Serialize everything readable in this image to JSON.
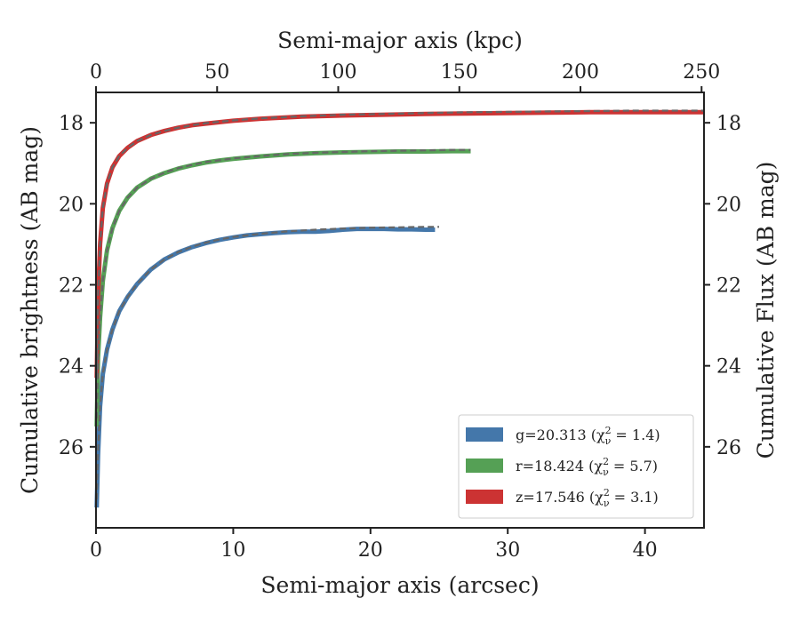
{
  "chart_data": {
    "type": "line",
    "xlabel": "Semi-major axis (arcsec)",
    "xlabel_top": "Semi-major axis (kpc)",
    "ylabel": "Cumulative brightness (AB mag)",
    "ylabel_right": "Cumulative Flux (AB mag)",
    "xlim": [
      0,
      44.3
    ],
    "xlim_top": [
      0,
      251
    ],
    "ylim": [
      28.0,
      17.25
    ],
    "y_inverted": true,
    "x_ticks": [
      0,
      10,
      20,
      30,
      40
    ],
    "x_tick_labels": [
      "0",
      "10",
      "20",
      "30",
      "40"
    ],
    "x_top_ticks": [
      0,
      50,
      100,
      150,
      200,
      250
    ],
    "x_top_tick_labels": [
      "0",
      "50",
      "100",
      "150",
      "200",
      "250"
    ],
    "y_ticks": [
      18,
      20,
      22,
      24,
      26
    ],
    "y_tick_labels": [
      "18",
      "20",
      "22",
      "24",
      "26"
    ],
    "grid": false,
    "legend_position": "lower-right",
    "legend": [
      {
        "band": "g",
        "text": "g=20.313 (χ",
        "sup": "2",
        "sub": "ν",
        "text_end": " = 1.4)",
        "color": "#4477aa"
      },
      {
        "band": "r",
        "text": "r=18.424 (χ",
        "sup": "2",
        "sub": "ν",
        "text_end": " = 5.7)",
        "color": "#55a055"
      },
      {
        "band": "z",
        "text": "z=17.546 (χ",
        "sup": "2",
        "sub": "ν",
        "text_end": " = 3.1)",
        "color": "#cc3333"
      }
    ],
    "model_line_color": "#666666",
    "series": [
      {
        "band": "g",
        "color": "#4477aa",
        "x": [
          0.05,
          0.15,
          0.3,
          0.5,
          0.8,
          1.2,
          1.7,
          2.3,
          3.0,
          4.0,
          5.0,
          6.0,
          7.0,
          8.0,
          9.0,
          10.0,
          11.0,
          12.0,
          13.0,
          14.0,
          15.0,
          16.0,
          17.0,
          18.0,
          19.0,
          20.0,
          21.0,
          22.0,
          23.0,
          24.0,
          24.7
        ],
        "y": [
          27.5,
          26.2,
          25.0,
          24.2,
          23.6,
          23.1,
          22.65,
          22.3,
          21.98,
          21.62,
          21.37,
          21.2,
          21.07,
          20.97,
          20.89,
          20.83,
          20.78,
          20.75,
          20.72,
          20.7,
          20.69,
          20.69,
          20.67,
          20.64,
          20.62,
          20.62,
          20.62,
          20.63,
          20.63,
          20.64,
          20.64
        ]
      },
      {
        "band": "r",
        "color": "#55a055",
        "x": [
          0.05,
          0.15,
          0.3,
          0.5,
          0.8,
          1.2,
          1.7,
          2.3,
          3.0,
          4.0,
          5.0,
          6.0,
          7.0,
          8.0,
          9.0,
          10.0,
          12.0,
          14.0,
          16.0,
          18.0,
          20.0,
          22.0,
          24.0,
          26.0,
          27.3
        ],
        "y": [
          25.5,
          23.8,
          22.8,
          21.9,
          21.15,
          20.6,
          20.17,
          19.85,
          19.6,
          19.38,
          19.24,
          19.13,
          19.05,
          18.98,
          18.93,
          18.89,
          18.83,
          18.78,
          18.75,
          18.73,
          18.72,
          18.71,
          18.71,
          18.7,
          18.7
        ]
      },
      {
        "band": "z",
        "color": "#cc3333",
        "x": [
          0.05,
          0.15,
          0.3,
          0.5,
          0.8,
          1.2,
          1.7,
          2.3,
          3.0,
          4.0,
          5.0,
          6.0,
          7.0,
          8.0,
          10.0,
          12.0,
          15.0,
          18.0,
          21.0,
          24.0,
          27.0,
          30.0,
          33.0,
          36.0,
          39.0,
          42.0,
          44.3
        ],
        "y": [
          24.3,
          22.3,
          21.0,
          20.1,
          19.5,
          19.1,
          18.82,
          18.62,
          18.45,
          18.3,
          18.2,
          18.12,
          18.06,
          18.02,
          17.95,
          17.9,
          17.85,
          17.82,
          17.8,
          17.78,
          17.77,
          17.76,
          17.75,
          17.74,
          17.74,
          17.74,
          17.74
        ]
      }
    ],
    "models": [
      {
        "band": "g",
        "x": [
          0.05,
          0.15,
          0.3,
          0.5,
          0.8,
          1.2,
          1.7,
          2.3,
          3.0,
          4.0,
          5.0,
          6.0,
          7.0,
          8.0,
          9.0,
          10.0,
          12.0,
          14.0,
          16.0,
          18.0,
          20.0,
          22.0,
          24.0,
          25.0
        ],
        "y": [
          27.3,
          26.1,
          25.0,
          24.2,
          23.6,
          23.1,
          22.65,
          22.3,
          21.98,
          21.62,
          21.37,
          21.19,
          21.06,
          20.96,
          20.88,
          20.82,
          20.74,
          20.68,
          20.64,
          20.61,
          20.59,
          20.58,
          20.57,
          20.57
        ]
      },
      {
        "band": "r",
        "x": [
          0.05,
          0.15,
          0.3,
          0.5,
          0.8,
          1.2,
          1.7,
          2.3,
          3.0,
          4.0,
          5.0,
          6.0,
          7.0,
          8.0,
          10.0,
          12.0,
          14.0,
          16.0,
          18.0,
          20.0,
          22.0,
          24.0,
          26.0,
          27.3
        ],
        "y": [
          25.3,
          23.8,
          22.8,
          21.9,
          21.15,
          20.6,
          20.17,
          19.85,
          19.6,
          19.38,
          19.23,
          19.12,
          19.04,
          18.97,
          18.88,
          18.82,
          18.77,
          18.74,
          18.72,
          18.7,
          18.69,
          18.68,
          18.67,
          18.67
        ]
      },
      {
        "band": "z",
        "x": [
          0.05,
          0.15,
          0.3,
          0.5,
          0.8,
          1.2,
          1.7,
          2.3,
          3.0,
          4.0,
          5.0,
          6.0,
          7.0,
          8.0,
          10.0,
          12.0,
          15.0,
          18.0,
          21.0,
          24.0,
          27.0,
          30.0,
          33.0,
          36.0,
          39.0,
          42.0,
          44.3
        ],
        "y": [
          24.2,
          22.3,
          21.0,
          20.1,
          19.5,
          19.1,
          18.82,
          18.62,
          18.45,
          18.3,
          18.2,
          18.12,
          18.06,
          18.01,
          17.94,
          17.89,
          17.84,
          17.8,
          17.78,
          17.76,
          17.74,
          17.73,
          17.72,
          17.71,
          17.7,
          17.7,
          17.7
        ]
      }
    ]
  }
}
